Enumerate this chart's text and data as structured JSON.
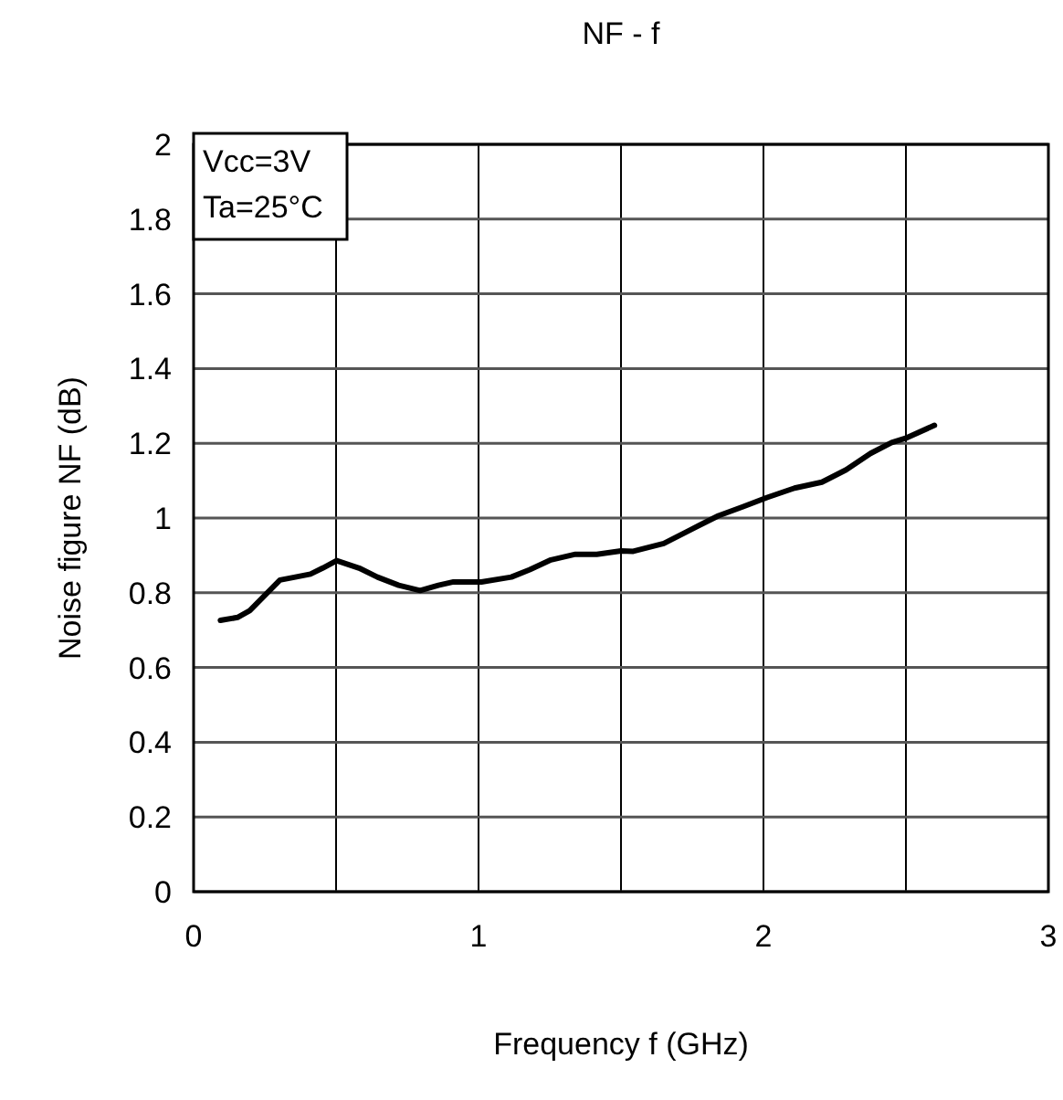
{
  "chart_data": {
    "type": "line",
    "title": "NF - f",
    "xlabel": "Frequency f (GHz)",
    "ylabel": "Noise figure NF (dB)",
    "annotations": [
      "Vcc=3V",
      "Ta=25°C"
    ],
    "x": [
      0.094,
      0.154,
      0.197,
      0.25,
      0.303,
      0.357,
      0.41,
      0.453,
      0.502,
      0.581,
      0.645,
      0.72,
      0.795,
      0.859,
      0.912,
      1.01,
      1.115,
      1.18,
      1.254,
      1.34,
      1.415,
      1.5,
      1.543,
      1.65,
      1.735,
      1.842,
      1.927,
      2.013,
      2.109,
      2.205,
      2.29,
      2.376,
      2.45,
      2.504,
      2.6
    ],
    "series": [
      {
        "color": "#000000",
        "values": [
          0.726,
          0.734,
          0.752,
          0.793,
          0.834,
          0.842,
          0.85,
          0.866,
          0.886,
          0.866,
          0.842,
          0.82,
          0.806,
          0.82,
          0.829,
          0.829,
          0.842,
          0.862,
          0.888,
          0.903,
          0.903,
          0.912,
          0.911,
          0.932,
          0.965,
          1.006,
          1.03,
          1.055,
          1.08,
          1.096,
          1.129,
          1.173,
          1.202,
          1.215,
          1.248
        ]
      }
    ],
    "xlim": [
      0,
      3
    ],
    "xticks": [
      0,
      {
        "value": 0.5,
        "label": null
      },
      1,
      {
        "value": 1.5,
        "label": null
      },
      2,
      {
        "value": 2.5,
        "label": null
      },
      3
    ],
    "ylim": [
      0,
      2
    ],
    "yticks": [
      0,
      0.2,
      0.4,
      0.6,
      0.8,
      1,
      1.2,
      1.4,
      1.6,
      1.8,
      2
    ],
    "grid": true,
    "marker": "none",
    "line_style": "solid"
  }
}
